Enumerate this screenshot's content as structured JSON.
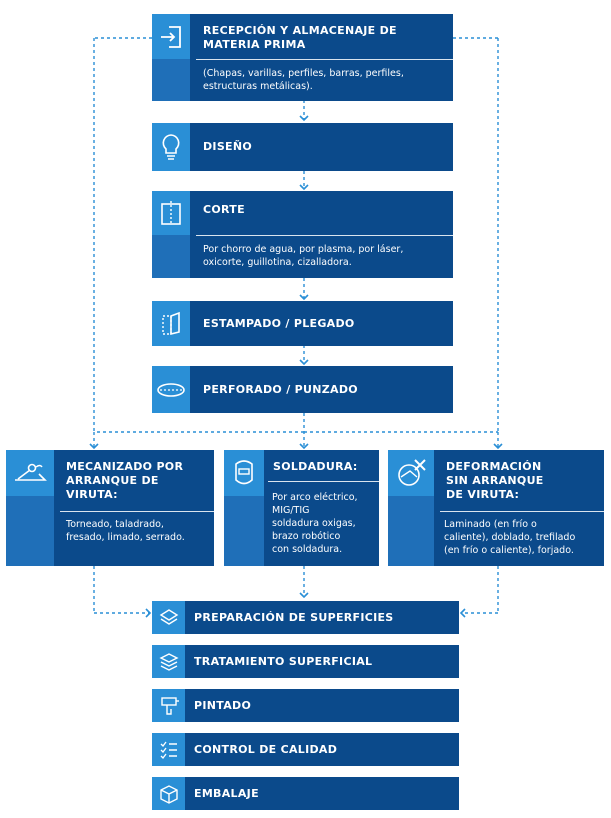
{
  "colors": {
    "box": "#0b4a8b",
    "icon": "#2a8fd6",
    "stripe": "#1f6fb8",
    "connector": "#2a8fd6"
  },
  "steps": {
    "reception": {
      "title": "RECEPCIÓN Y ALMACENAJE DE\nMATERIA PRIMA",
      "desc": "(Chapas, varillas, perfiles, barras, perfiles,\nestructuras metálicas).",
      "icon": "login-arrow-icon"
    },
    "design": {
      "title": "DISEÑO",
      "icon": "lightbulb-icon"
    },
    "cut": {
      "title": "CORTE",
      "desc": "Por chorro de agua, por plasma, por láser,\noxicorte, guillotina, cizalladora.",
      "icon": "cut-sheet-icon"
    },
    "stamping": {
      "title": "ESTAMPADO / PLEGADO",
      "icon": "folded-sheet-icon"
    },
    "perforating": {
      "title": "PERFORADO / PUNZADO",
      "icon": "punch-disc-icon"
    },
    "machining": {
      "title": "MECANIZADO POR\nARRANQUE DE\nVIRUTA:",
      "desc": "Torneado, taladrado,\nfresado, limado, serrado.",
      "icon": "lathe-tool-icon"
    },
    "welding": {
      "title": "SOLDADURA:",
      "desc": "Por arco eléctrico,\nMIG/TIG\nsoldadura oxigas,\nbrazo robótico\ncon soldadura.",
      "icon": "welding-mask-icon"
    },
    "deformation": {
      "title": "DEFORMACIÓN\nSIN ARRANQUE\nDE VIRUTA:",
      "desc": "Laminado (en frío o\ncaliente), doblado, trefilado\n(en frío o caliente), forjado.",
      "icon": "hammer-cross-icon"
    },
    "surface_prep": {
      "title": "PREPARACIÓN DE SUPERFICIES",
      "icon": "layers-icon"
    },
    "surface_treat": {
      "title": "TRATAMIENTO SUPERFICIAL",
      "icon": "layers-stack-icon"
    },
    "painting": {
      "title": "PINTADO",
      "icon": "paint-gun-icon"
    },
    "quality": {
      "title": "CONTROL DE CALIDAD",
      "icon": "checklist-icon"
    },
    "packaging": {
      "title": "EMBALAJE",
      "icon": "box-icon"
    }
  }
}
